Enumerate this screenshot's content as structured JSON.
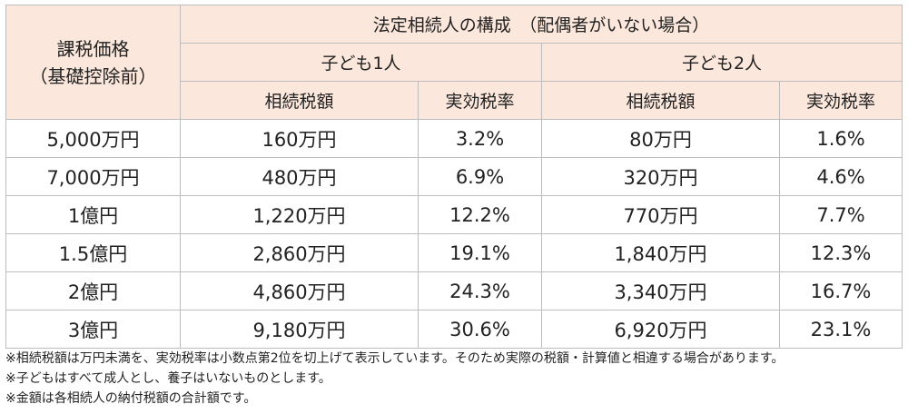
{
  "table": {
    "corner_line1": "課税価格",
    "corner_line2": "（基礎控除前）",
    "group_header": "法定相続人の構成　（配偶者がいない場合）",
    "sub_groups": [
      "子ども1人",
      "子ども2人"
    ],
    "column_headers": [
      "相続税額",
      "実効税率",
      "相続税額",
      "実効税率"
    ],
    "rows": [
      {
        "price": "5,000万円",
        "tax1": "160万円",
        "rate1": "3.2%",
        "tax2": "80万円",
        "rate2": "1.6%"
      },
      {
        "price": "7,000万円",
        "tax1": "480万円",
        "rate1": "6.9%",
        "tax2": "320万円",
        "rate2": "4.6%"
      },
      {
        "price": "1億円",
        "tax1": "1,220万円",
        "rate1": "12.2%",
        "tax2": "770万円",
        "rate2": "7.7%"
      },
      {
        "price": "1.5億円",
        "tax1": "2,860万円",
        "rate1": "19.1%",
        "tax2": "1,840万円",
        "rate2": "12.3%"
      },
      {
        "price": "2億円",
        "tax1": "4,860万円",
        "rate1": "24.3%",
        "tax2": "3,340万円",
        "rate2": "16.7%"
      },
      {
        "price": "3億円",
        "tax1": "9,180万円",
        "rate1": "30.6%",
        "tax2": "6,920万円",
        "rate2": "23.1%"
      }
    ]
  },
  "notes": [
    "※相続税額は万円未満を、実効税率は小数点第2位を切上げて表示しています。そのため実際の税額・計算値と相違する場合があります。",
    "※子どもはすべて成人とし、養子はいないものとします。",
    "※金額は各相続人の納付税額の合計額です。"
  ],
  "colors": {
    "header_bg": "#fbe7db",
    "border": "#bdbdbd"
  }
}
